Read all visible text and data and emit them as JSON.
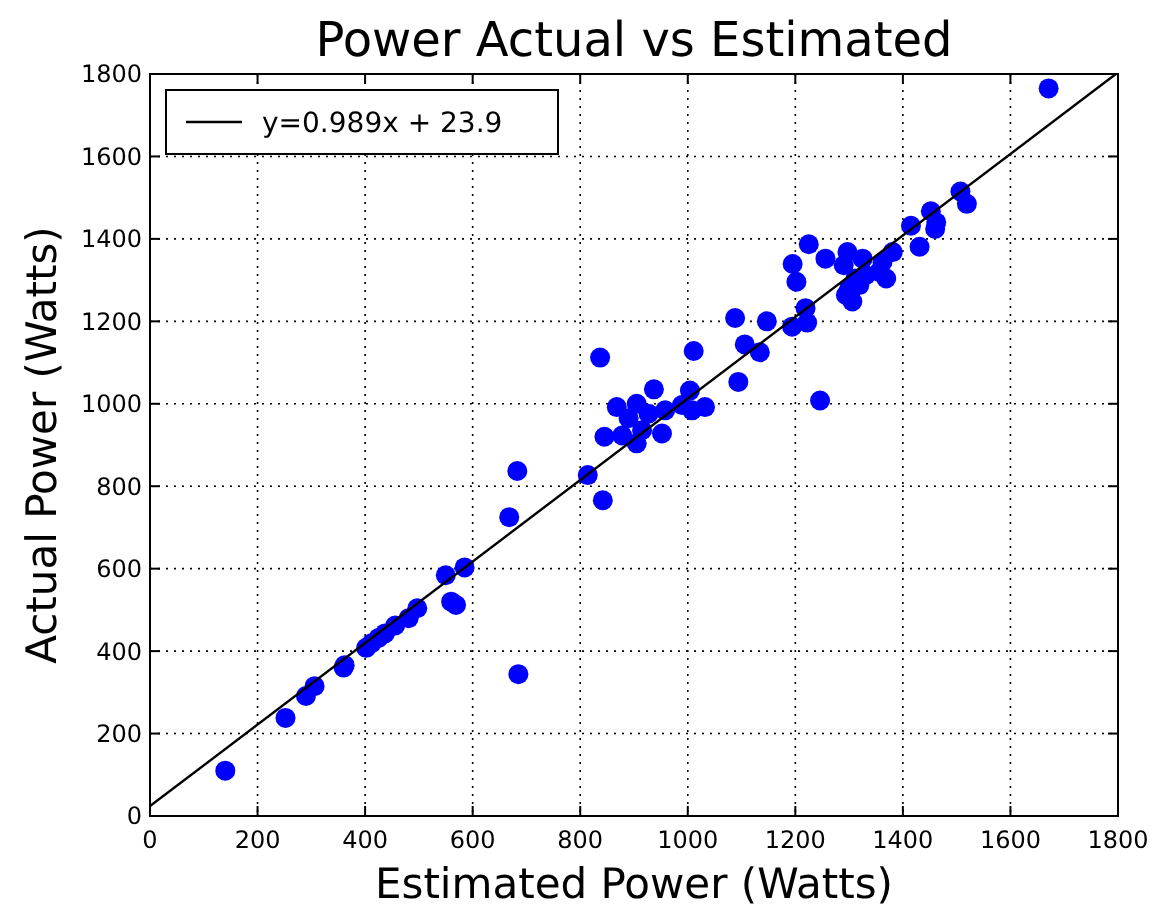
{
  "chart_data": {
    "type": "scatter",
    "title": "Power Actual vs Estimated",
    "xlabel": "Estimated Power (Watts)",
    "ylabel": "Actual Power (Watts)",
    "xlim": [
      0,
      1800
    ],
    "ylim": [
      0,
      1800
    ],
    "xticks": [
      0,
      200,
      400,
      600,
      800,
      1000,
      1200,
      1400,
      1600,
      1800
    ],
    "yticks": [
      0,
      200,
      400,
      600,
      800,
      1000,
      1200,
      1400,
      1600,
      1800
    ],
    "grid": true,
    "legend": "top left",
    "marker": "circle",
    "series": [
      {
        "color": "#0000ff",
        "x": [
          140,
          252,
          290,
          306,
          360,
          362,
          402,
          412,
          425,
          437,
          456,
          481,
          497,
          550,
          585,
          560,
          569,
          685,
          683,
          668,
          814,
          842,
          837,
          845,
          878,
          868,
          905,
          890,
          905,
          915,
          927,
          937,
          952,
          958,
          989,
          1004,
          1008,
          1032,
          1011,
          1094,
          1106,
          1134,
          1088,
          1147,
          1246,
          1671,
          1507,
          1519,
          1452,
          1415,
          1462,
          1460,
          1431,
          1225,
          1195,
          1256,
          1297,
          1202,
          1290,
          1325,
          1356,
          1369,
          1381,
          1362,
          1312,
          1300,
          1294,
          1319,
          1306,
          1331,
          1219,
          1194,
          1222
        ],
        "values": [
          110,
          238,
          291,
          315,
          360,
          366,
          408,
          419,
          432,
          443,
          462,
          480,
          504,
          584,
          603,
          520,
          512,
          344,
          837,
          725,
          827,
          766,
          1112,
          920,
          923,
          992,
          1000,
          965,
          904,
          936,
          976,
          1035,
          928,
          984,
          997,
          1032,
          984,
          992,
          1128,
          1053,
          1144,
          1125,
          1208,
          1200,
          1008,
          1765,
          1515,
          1485,
          1467,
          1432,
          1440,
          1424,
          1381,
          1387,
          1339,
          1352,
          1368,
          1296,
          1336,
          1352,
          1320,
          1304,
          1368,
          1344,
          1304,
          1280,
          1264,
          1288,
          1248,
          1312,
          1232,
          1187,
          1197
        ]
      },
      {
        "type": "line",
        "name": "y=0.989x + 23.9",
        "color": "#000000",
        "line_style": "solid",
        "marker": "none",
        "x": [
          0,
          1796
        ],
        "values": [
          24,
          1800
        ]
      }
    ]
  }
}
